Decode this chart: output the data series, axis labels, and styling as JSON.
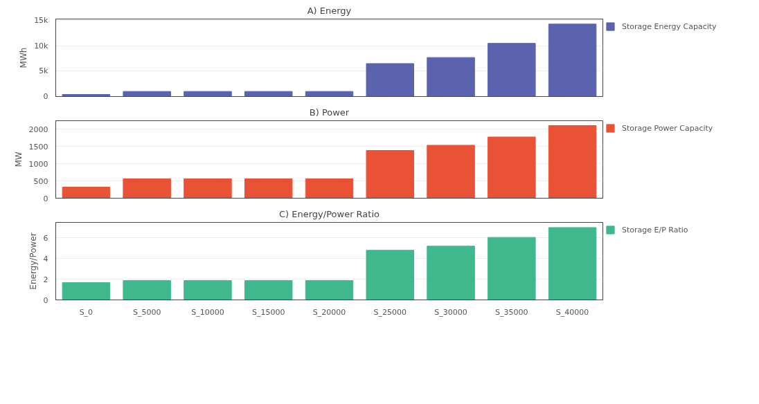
{
  "chart_data": [
    {
      "type": "bar",
      "title": "A) Energy",
      "ylabel": "MWh",
      "series": [
        {
          "name": "Storage Energy Capacity",
          "color": "#5b62ae",
          "values": [
            400,
            1000,
            1000,
            1000,
            1000,
            6500,
            7700,
            10500,
            14300
          ]
        }
      ],
      "ylim": [
        0,
        15300
      ],
      "yticks": [
        0,
        {
          "value": 5000,
          "label": "5k"
        },
        {
          "value": 10000,
          "label": "10k"
        },
        {
          "value": 15000,
          "label": "15k"
        }
      ],
      "grid": "y",
      "legend": "right",
      "tick_labels": "y"
    },
    {
      "type": "bar",
      "title": "B) Power",
      "ylabel": "MW",
      "series": [
        {
          "name": "Storage Power Capacity",
          "color": "#ea5236",
          "values": [
            320,
            560,
            560,
            560,
            560,
            1380,
            1530,
            1770,
            2100
          ]
        }
      ],
      "ylim": [
        0,
        2240
      ],
      "yticks": [
        0,
        500,
        1000,
        1500,
        2000
      ],
      "grid": "y",
      "legend": "right",
      "tick_labels": "y"
    },
    {
      "type": "bar",
      "title": "C) Energy/Power Ratio",
      "ylabel": "Energy/Power",
      "categories": [
        "S_0",
        "S_5000",
        "S_10000",
        "S_15000",
        "S_20000",
        "S_25000",
        "S_30000",
        "S_35000",
        "S_40000"
      ],
      "series": [
        {
          "name": "Storage E/P Ratio",
          "color": "#3eb88c",
          "values": [
            1.67,
            1.87,
            1.87,
            1.87,
            1.87,
            4.8,
            5.2,
            6.05,
            7.0
          ]
        }
      ],
      "ylim": [
        0,
        7.5
      ],
      "yticks": [
        0,
        2,
        4,
        6
      ],
      "grid": "y",
      "legend": "right"
    }
  ]
}
